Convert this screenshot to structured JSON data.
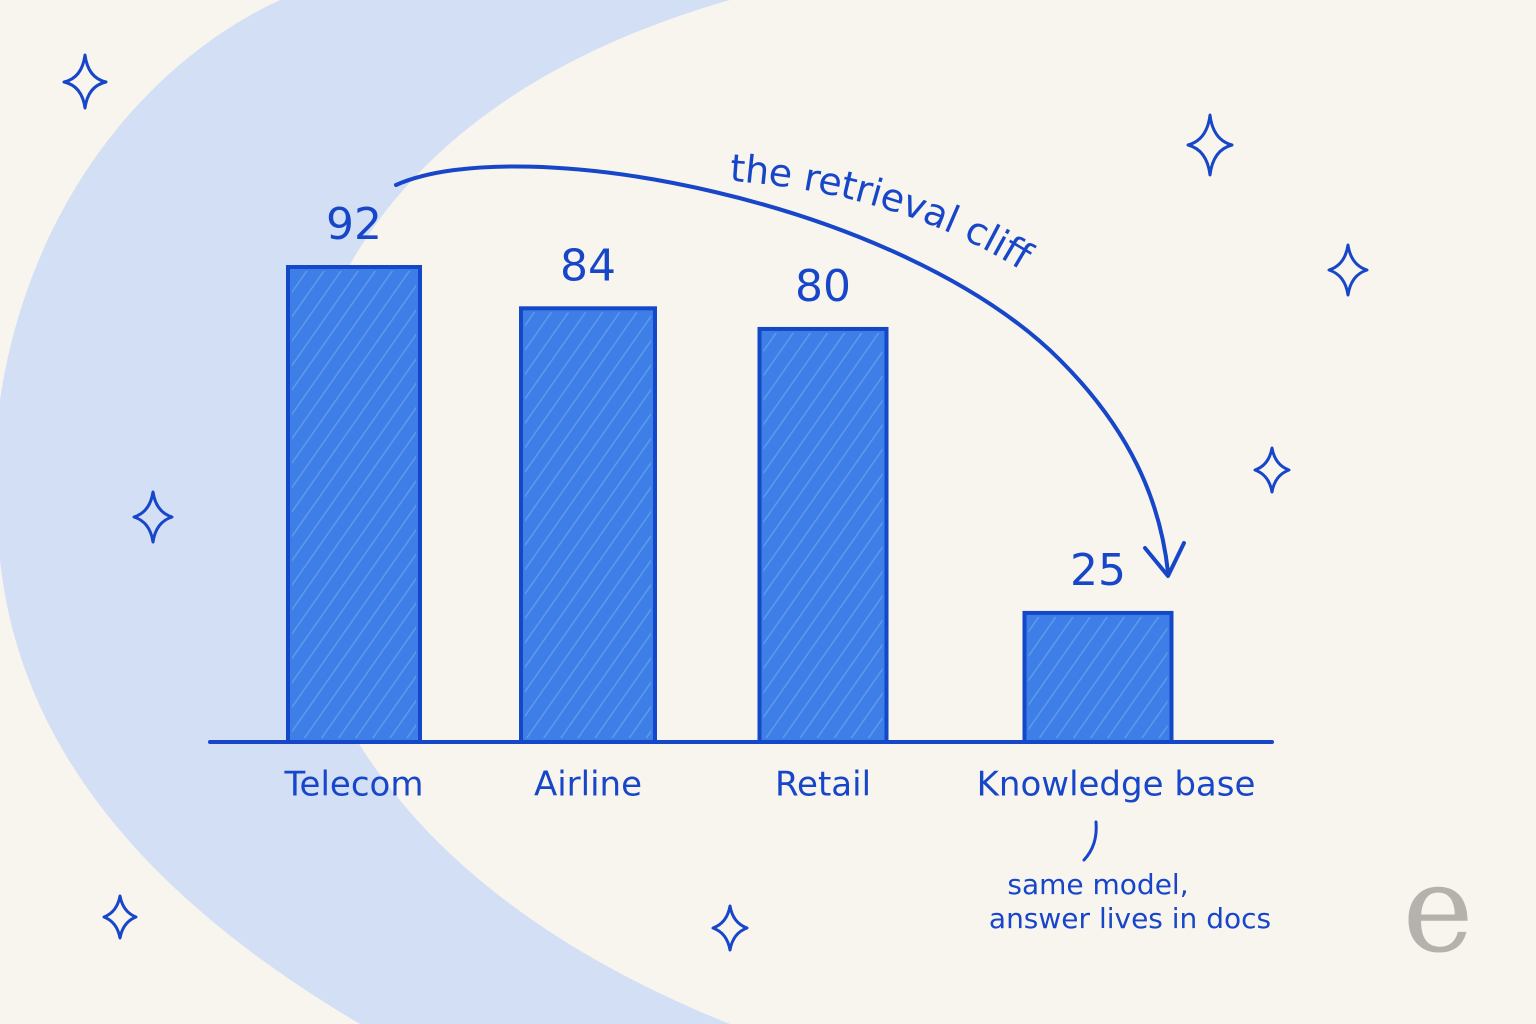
{
  "chart_data": {
    "type": "bar",
    "title": "the retrieval cliff",
    "categories": [
      "Telecom",
      "Airline",
      "Retail",
      "Knowledge base"
    ],
    "values": [
      92,
      84,
      80,
      25
    ],
    "color": "#3d7fe6",
    "annotation": [
      "same model,",
      "answer lives in docs"
    ],
    "logo": "e"
  }
}
